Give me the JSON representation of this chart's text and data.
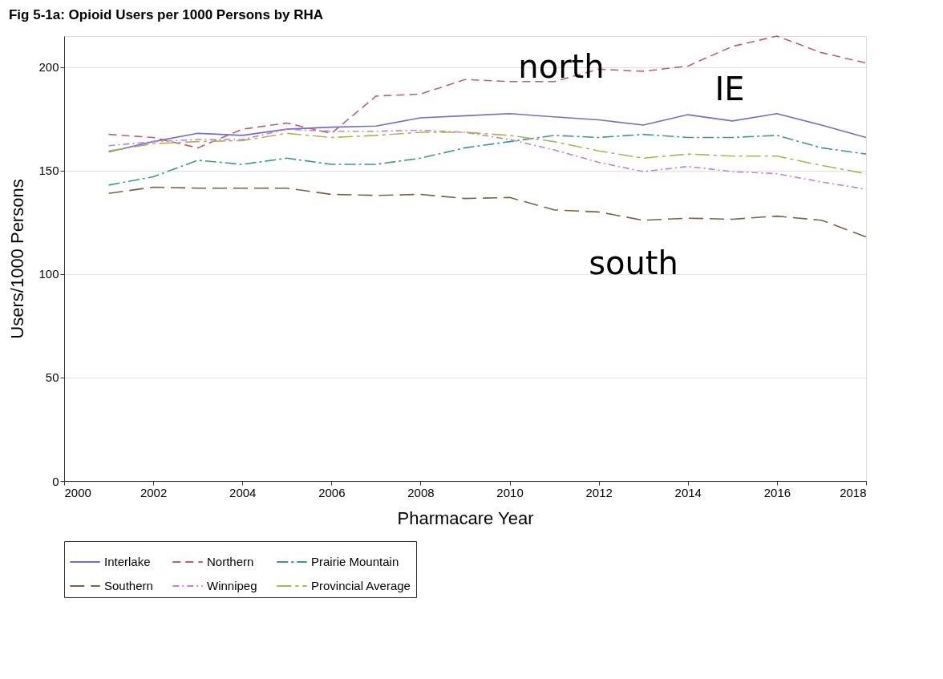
{
  "chart_data": {
    "type": "line",
    "title": "Fig 5-1a: Opioid Users per 1000 Persons by RHA",
    "xlabel": "Pharmacare Year",
    "ylabel": "Users/1000 Persons",
    "x": [
      2001,
      2002,
      2003,
      2004,
      2005,
      2006,
      2007,
      2008,
      2009,
      2010,
      2011,
      2012,
      2013,
      2014,
      2015,
      2016,
      2017,
      2018
    ],
    "series": [
      {
        "name": "Interlake",
        "color": "#6f6fd0",
        "line_style": "solid",
        "values": [
          159,
          164,
          168,
          167,
          170,
          171,
          171.5,
          175.5,
          176.5,
          177.5,
          176,
          174.5,
          172,
          177,
          174,
          177.5,
          172,
          166
        ]
      },
      {
        "name": "Northern",
        "color": "#c0606e",
        "line_style": "dashed",
        "values": [
          167.5,
          166,
          161,
          170,
          173,
          168,
          186,
          187,
          194,
          193,
          193,
          199,
          198,
          200.5,
          210,
          215,
          207,
          202
        ]
      },
      {
        "name": "Prairie Mountain",
        "color": "#3c9a8a",
        "line_style": "dashed",
        "values": [
          143,
          147,
          155,
          153,
          156,
          153,
          153,
          156,
          161,
          164,
          167,
          166,
          167.5,
          166,
          166,
          167,
          161,
          158
        ]
      },
      {
        "name": "Southern",
        "color": "#7a6248",
        "line_style": "dashed",
        "values": [
          139,
          142,
          141.5,
          141.5,
          141.5,
          138.5,
          138,
          138.5,
          136.5,
          137,
          131,
          130,
          126,
          127,
          126.5,
          128,
          126,
          118
        ]
      },
      {
        "name": "Winnipeg",
        "color": "#c47fe0",
        "line_style": "dashed",
        "values": [
          162,
          164,
          165,
          165,
          170,
          169,
          169,
          169.5,
          168.5,
          165,
          160,
          154,
          149.5,
          152,
          149.5,
          148.5,
          144.5,
          141
        ]
      },
      {
        "name": "Provincial Average",
        "color": "#a8b850",
        "line_style": "dashed",
        "values": [
          159.5,
          163,
          164,
          164.5,
          168,
          166,
          167,
          168.5,
          168.5,
          167,
          164,
          159.5,
          156,
          158,
          157,
          157,
          152.5,
          148.5
        ]
      }
    ],
    "xlim": [
      2000,
      2018
    ],
    "xticks": [
      2000,
      2002,
      2004,
      2006,
      2008,
      2010,
      2012,
      2014,
      2016,
      2018
    ],
    "ylim": [
      0,
      215
    ],
    "yticks": [
      0,
      50,
      100,
      150,
      200
    ],
    "grid": "y",
    "legend": "bottom",
    "marker": "none",
    "annotations": [
      "north",
      "IE",
      "south"
    ]
  }
}
